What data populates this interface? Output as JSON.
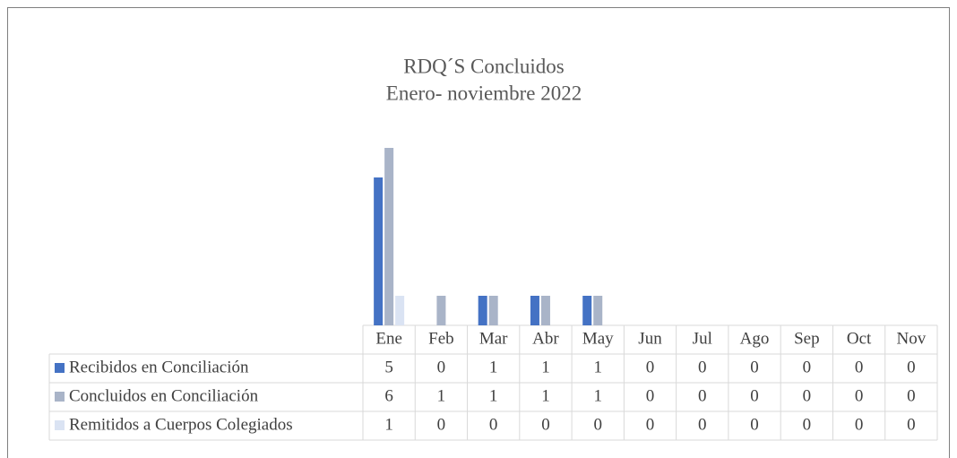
{
  "chart_data": {
    "type": "bar",
    "title": "RDQ´S Concluidos",
    "subtitle": "Enero- noviembre 2022",
    "categories": [
      "Ene",
      "Feb",
      "Mar",
      "Abr",
      "May",
      "Jun",
      "Jul",
      "Ago",
      "Sep",
      "Oct",
      "Nov"
    ],
    "series": [
      {
        "name": "Recibidos en Conciliación",
        "color": "#4472c4",
        "values": [
          5,
          0,
          1,
          1,
          1,
          0,
          0,
          0,
          0,
          0,
          0
        ]
      },
      {
        "name": "Concluidos en Conciliación",
        "color": "#a9b4c8",
        "values": [
          6,
          1,
          1,
          1,
          1,
          0,
          0,
          0,
          0,
          0,
          0
        ]
      },
      {
        "name": "Remitidos a Cuerpos Colegiados",
        "color": "#dae3f3",
        "values": [
          1,
          0,
          0,
          0,
          0,
          0,
          0,
          0,
          0,
          0,
          0
        ]
      }
    ]
  }
}
